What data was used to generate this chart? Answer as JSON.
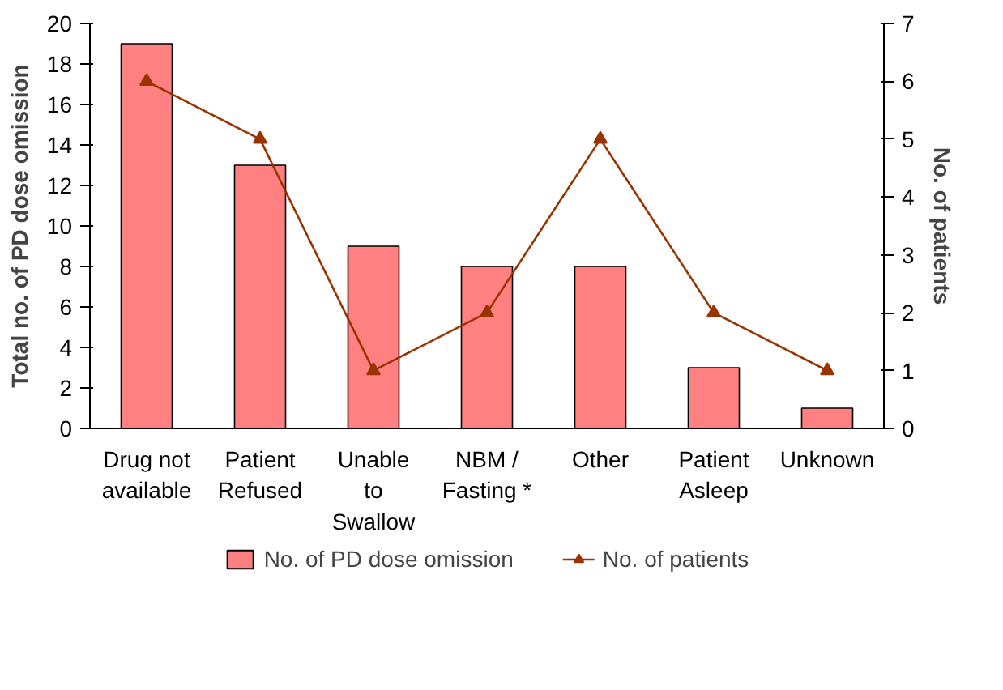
{
  "chart_data": {
    "type": "bar",
    "ylabel": "Total no. of PD dose omission",
    "y2label": "No. of patients",
    "categories": [
      "Drug not\navailable",
      "Patient\nRefused",
      "Unable\nto\nSwallow",
      "NBM /\nFasting *",
      "Other",
      "Patient\nAsleep",
      "Unknown"
    ],
    "series": [
      {
        "name": "No. of PD dose omission",
        "type": "bar",
        "color": "#ff8080",
        "values": [
          19,
          13,
          9,
          8,
          8,
          3,
          1
        ]
      },
      {
        "name": "No. of patients",
        "type": "line",
        "axis": "y2",
        "color": "#993300",
        "marker": "triangle",
        "values": [
          6,
          5,
          1,
          2,
          5,
          2,
          1
        ]
      }
    ],
    "ylim": [
      0,
      20
    ],
    "yticks": [
      0,
      2,
      4,
      6,
      8,
      10,
      12,
      14,
      16,
      18,
      20
    ],
    "y2lim": [
      0,
      7
    ],
    "y2ticks": [
      0,
      1,
      2,
      3,
      4,
      5,
      6,
      7
    ],
    "grid": false,
    "legend": "bottom"
  }
}
